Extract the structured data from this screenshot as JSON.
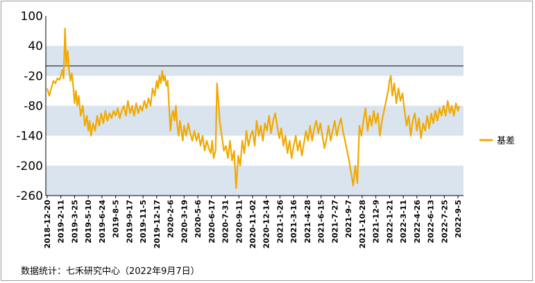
{
  "chart_data": {
    "type": "line",
    "title": "",
    "xlabel": "",
    "ylabel": "",
    "ylim": [
      -260,
      100
    ],
    "yticks": [
      100,
      40,
      -20,
      -80,
      -140,
      -200,
      -260
    ],
    "bands": [
      [
        40,
        -20
      ],
      [
        -80,
        -140
      ],
      [
        -200,
        -260
      ]
    ],
    "reference_line": 0,
    "x_tick_labels": [
      "2018-12-20",
      "2019-2-11",
      "2019-3-25",
      "2019-5-10",
      "2019-6-24",
      "2019-8-5",
      "2019-9-17",
      "2019-11-5",
      "2019-12-17",
      "2020-2-6",
      "2020-3-19",
      "2020-5-6",
      "2020-6-17",
      "2020-7-31",
      "2020-9-11",
      "2020-11-02",
      "2020-12-14",
      "2021-1-26",
      "2021-3-16",
      "2021-4-28",
      "2021-6-15",
      "2021-7-27",
      "2021-9-7",
      "2021-10-28",
      "2021-12-9",
      "2022-1-21",
      "2022-3-11",
      "2022-4-26",
      "2022-6-13",
      "2022-7-25",
      "2022-9-5"
    ],
    "series": [
      {
        "name": "基差",
        "color": "#f2a900",
        "points": [
          [
            0,
            -45
          ],
          [
            0.15,
            -60
          ],
          [
            0.3,
            -45
          ],
          [
            0.45,
            -30
          ],
          [
            0.6,
            -35
          ],
          [
            0.75,
            -25
          ],
          [
            0.9,
            -28
          ],
          [
            1,
            -20
          ],
          [
            1.1,
            -8
          ],
          [
            1.2,
            -25
          ],
          [
            1.3,
            75
          ],
          [
            1.4,
            0
          ],
          [
            1.5,
            30
          ],
          [
            1.6,
            -10
          ],
          [
            1.7,
            -30
          ],
          [
            1.8,
            -15
          ],
          [
            1.9,
            -40
          ],
          [
            2.0,
            -75
          ],
          [
            2.1,
            -50
          ],
          [
            2.2,
            -80
          ],
          [
            2.3,
            -60
          ],
          [
            2.45,
            -100
          ],
          [
            2.6,
            -80
          ],
          [
            2.75,
            -120
          ],
          [
            2.9,
            -100
          ],
          [
            3.0,
            -130
          ],
          [
            3.1,
            -110
          ],
          [
            3.2,
            -140
          ],
          [
            3.35,
            -115
          ],
          [
            3.5,
            -130
          ],
          [
            3.65,
            -100
          ],
          [
            3.8,
            -120
          ],
          [
            3.95,
            -95
          ],
          [
            4.1,
            -115
          ],
          [
            4.25,
            -90
          ],
          [
            4.4,
            -110
          ],
          [
            4.55,
            -95
          ],
          [
            4.7,
            -105
          ],
          [
            4.85,
            -90
          ],
          [
            5.0,
            -100
          ],
          [
            5.15,
            -85
          ],
          [
            5.3,
            -105
          ],
          [
            5.45,
            -90
          ],
          [
            5.6,
            -80
          ],
          [
            5.75,
            -100
          ],
          [
            5.9,
            -70
          ],
          [
            6.05,
            -95
          ],
          [
            6.2,
            -80
          ],
          [
            6.35,
            -100
          ],
          [
            6.5,
            -75
          ],
          [
            6.65,
            -95
          ],
          [
            6.8,
            -80
          ],
          [
            6.95,
            -90
          ],
          [
            7.1,
            -70
          ],
          [
            7.25,
            -85
          ],
          [
            7.4,
            -65
          ],
          [
            7.55,
            -80
          ],
          [
            7.7,
            -45
          ],
          [
            7.85,
            -60
          ],
          [
            8.0,
            -30
          ],
          [
            8.1,
            -45
          ],
          [
            8.2,
            -20
          ],
          [
            8.3,
            -35
          ],
          [
            8.4,
            -10
          ],
          [
            8.5,
            -30
          ],
          [
            8.6,
            -20
          ],
          [
            8.7,
            -40
          ],
          [
            8.8,
            -30
          ],
          [
            8.9,
            -80
          ],
          [
            9.0,
            -130
          ],
          [
            9.1,
            -100
          ],
          [
            9.2,
            -90
          ],
          [
            9.3,
            -110
          ],
          [
            9.4,
            -80
          ],
          [
            9.5,
            -120
          ],
          [
            9.6,
            -140
          ],
          [
            9.7,
            -110
          ],
          [
            9.8,
            -130
          ],
          [
            9.9,
            -150
          ],
          [
            10.0,
            -120
          ],
          [
            10.15,
            -140
          ],
          [
            10.3,
            -115
          ],
          [
            10.45,
            -135
          ],
          [
            10.6,
            -150
          ],
          [
            10.75,
            -130
          ],
          [
            10.9,
            -150
          ],
          [
            11.05,
            -135
          ],
          [
            11.2,
            -160
          ],
          [
            11.35,
            -140
          ],
          [
            11.5,
            -170
          ],
          [
            11.65,
            -150
          ],
          [
            11.8,
            -165
          ],
          [
            11.95,
            -175
          ],
          [
            12.05,
            -150
          ],
          [
            12.15,
            -185
          ],
          [
            12.3,
            -170
          ],
          [
            12.4,
            -35
          ],
          [
            12.5,
            -70
          ],
          [
            12.6,
            -110
          ],
          [
            12.75,
            -140
          ],
          [
            12.9,
            -170
          ],
          [
            13.05,
            -160
          ],
          [
            13.2,
            -185
          ],
          [
            13.35,
            -150
          ],
          [
            13.5,
            -190
          ],
          [
            13.65,
            -170
          ],
          [
            13.8,
            -245
          ],
          [
            13.95,
            -180
          ],
          [
            14.1,
            -200
          ],
          [
            14.25,
            -150
          ],
          [
            14.4,
            -175
          ],
          [
            14.55,
            -130
          ],
          [
            14.7,
            -160
          ],
          [
            14.85,
            -140
          ],
          [
            15.0,
            -130
          ],
          [
            15.15,
            -160
          ],
          [
            15.3,
            -110
          ],
          [
            15.45,
            -140
          ],
          [
            15.6,
            -120
          ],
          [
            15.75,
            -150
          ],
          [
            15.9,
            -115
          ],
          [
            16.05,
            -130
          ],
          [
            16.2,
            -100
          ],
          [
            16.35,
            -135
          ],
          [
            16.5,
            -110
          ],
          [
            16.65,
            -95
          ],
          [
            16.8,
            -120
          ],
          [
            16.95,
            -145
          ],
          [
            17.1,
            -125
          ],
          [
            17.25,
            -160
          ],
          [
            17.4,
            -140
          ],
          [
            17.55,
            -175
          ],
          [
            17.7,
            -150
          ],
          [
            17.85,
            -185
          ],
          [
            18.0,
            -160
          ],
          [
            18.15,
            -140
          ],
          [
            18.3,
            -170
          ],
          [
            18.45,
            -150
          ],
          [
            18.6,
            -180
          ],
          [
            18.75,
            -155
          ],
          [
            18.9,
            -130
          ],
          [
            19.05,
            -150
          ],
          [
            19.2,
            -120
          ],
          [
            19.35,
            -150
          ],
          [
            19.5,
            -125
          ],
          [
            19.65,
            -110
          ],
          [
            19.8,
            -135
          ],
          [
            19.95,
            -115
          ],
          [
            20.1,
            -140
          ],
          [
            20.25,
            -165
          ],
          [
            20.4,
            -145
          ],
          [
            20.55,
            -120
          ],
          [
            20.7,
            -150
          ],
          [
            20.85,
            -130
          ],
          [
            21.0,
            -110
          ],
          [
            21.15,
            -140
          ],
          [
            21.3,
            -120
          ],
          [
            21.45,
            -105
          ],
          [
            21.6,
            -130
          ],
          [
            21.75,
            -150
          ],
          [
            21.9,
            -170
          ],
          [
            22.05,
            -190
          ],
          [
            22.2,
            -215
          ],
          [
            22.35,
            -240
          ],
          [
            22.5,
            -200
          ],
          [
            22.65,
            -235
          ],
          [
            22.8,
            -120
          ],
          [
            22.95,
            -140
          ],
          [
            23.1,
            -110
          ],
          [
            23.25,
            -85
          ],
          [
            23.4,
            -130
          ],
          [
            23.55,
            -100
          ],
          [
            23.7,
            -120
          ],
          [
            23.85,
            -90
          ],
          [
            24.0,
            -115
          ],
          [
            24.15,
            -95
          ],
          [
            24.3,
            -140
          ],
          [
            24.45,
            -110
          ],
          [
            24.6,
            -90
          ],
          [
            24.75,
            -70
          ],
          [
            24.9,
            -50
          ],
          [
            25.0,
            -30
          ],
          [
            25.1,
            -20
          ],
          [
            25.2,
            -60
          ],
          [
            25.35,
            -35
          ],
          [
            25.5,
            -75
          ],
          [
            25.65,
            -45
          ],
          [
            25.8,
            -70
          ],
          [
            25.95,
            -55
          ],
          [
            26.1,
            -90
          ],
          [
            26.25,
            -120
          ],
          [
            26.4,
            -100
          ],
          [
            26.55,
            -140
          ],
          [
            26.7,
            -110
          ],
          [
            26.85,
            -95
          ],
          [
            27.0,
            -130
          ],
          [
            27.15,
            -105
          ],
          [
            27.3,
            -145
          ],
          [
            27.45,
            -115
          ],
          [
            27.6,
            -130
          ],
          [
            27.75,
            -100
          ],
          [
            27.9,
            -125
          ],
          [
            28.05,
            -95
          ],
          [
            28.2,
            -115
          ],
          [
            28.35,
            -90
          ],
          [
            28.5,
            -110
          ],
          [
            28.65,
            -85
          ],
          [
            28.8,
            -100
          ],
          [
            28.95,
            -80
          ],
          [
            29.1,
            -100
          ],
          [
            29.25,
            -70
          ],
          [
            29.4,
            -95
          ],
          [
            29.55,
            -80
          ],
          [
            29.7,
            -100
          ],
          [
            29.85,
            -75
          ],
          [
            30.0,
            -90
          ],
          [
            30.1,
            -80
          ]
        ]
      }
    ]
  },
  "legend": {
    "label": "基差",
    "color": "#f2a900"
  },
  "source_note": "数据统计：七禾研究中心（2022年9月7日）"
}
